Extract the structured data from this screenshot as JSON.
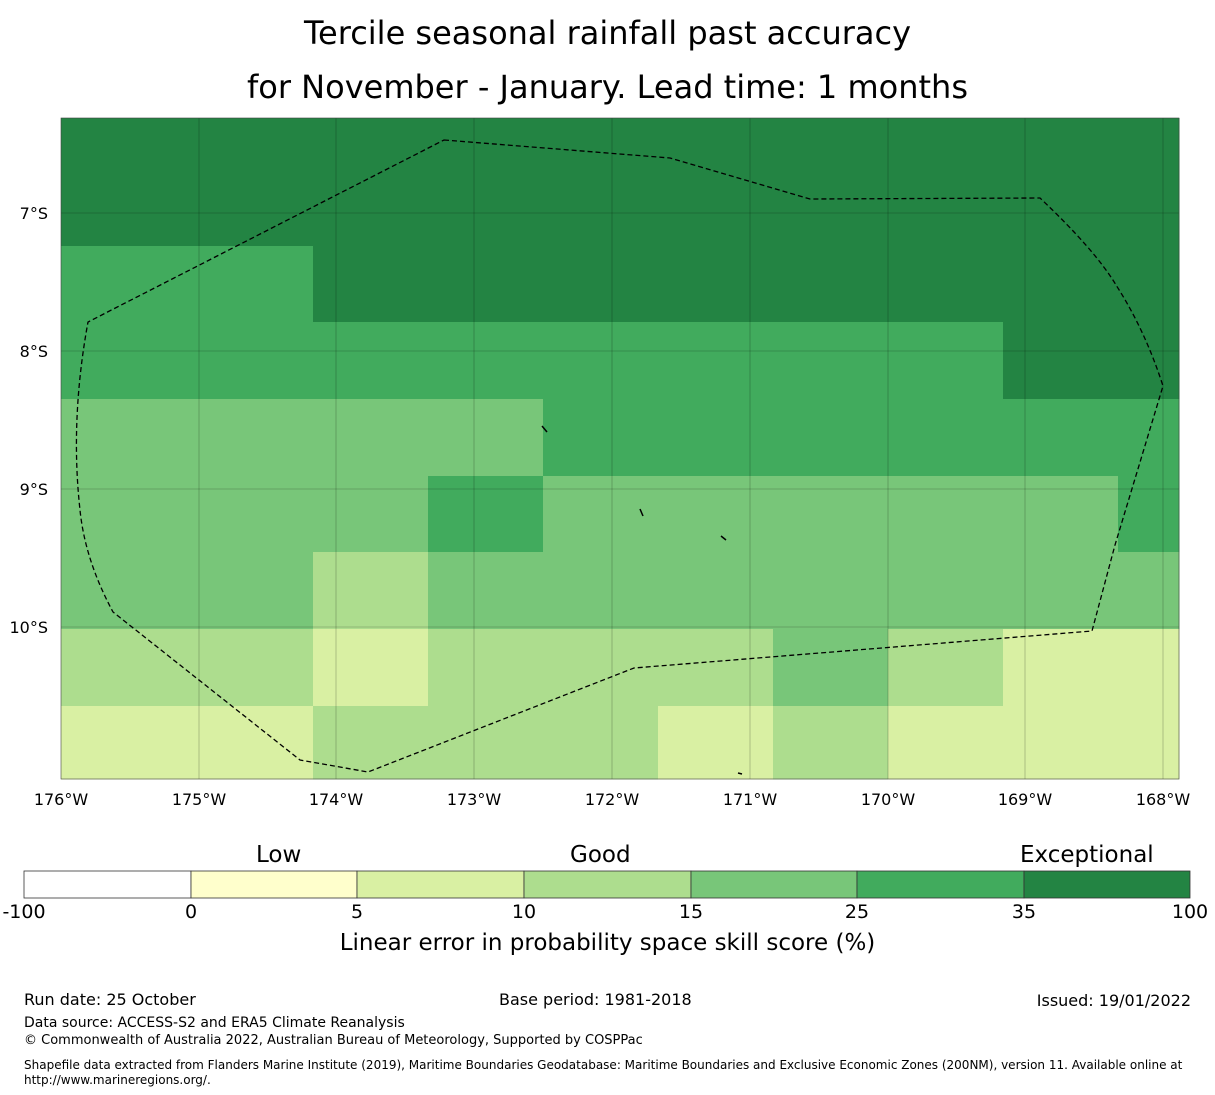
{
  "title": {
    "line1": "Tercile seasonal rainfall past accuracy",
    "line2": "for November - January. Lead time: 1 months"
  },
  "map": {
    "lat_labels": [
      "7°S",
      "8°S",
      "9°S",
      "10°S"
    ],
    "lon_labels": [
      "176°W",
      "175°W",
      "174°W",
      "173°W",
      "172°W",
      "171°W",
      "170°W",
      "169°W",
      "168°W"
    ],
    "grid_rows": [
      [
        "#238443",
        "#238443",
        "#238443",
        "#238443",
        "#238443",
        "#238443",
        "#238443",
        "#238443",
        "#238443",
        "#238443",
        "#238443"
      ],
      [
        "#41ab5d",
        "#41ab5d",
        "#238443",
        "#238443",
        "#238443",
        "#238443",
        "#238443",
        "#238443",
        "#238443",
        "#238443",
        "#238443"
      ],
      [
        "#41ab5d",
        "#41ab5d",
        "#41ab5d",
        "#41ab5d",
        "#41ab5d",
        "#41ab5d",
        "#41ab5d",
        "#41ab5d",
        "#238443",
        "#238443",
        "#41ab5d"
      ],
      [
        "#78c679",
        "#78c679",
        "#78c679",
        "#78c679",
        "#41ab5d",
        "#41ab5d",
        "#41ab5d",
        "#41ab5d",
        "#41ab5d",
        "#41ab5d",
        "#78c679"
      ],
      [
        "#78c679",
        "#78c679",
        "#78c679",
        "#41ab5d",
        "#78c679",
        "#78c679",
        "#78c679",
        "#78c679",
        "#78c679",
        "#41ab5d",
        "#78c679"
      ],
      [
        "#78c679",
        "#78c679",
        "#addd8e",
        "#78c679",
        "#78c679",
        "#78c679",
        "#78c679",
        "#78c679",
        "#78c679",
        "#78c679",
        "#78c679"
      ],
      [
        "#addd8e",
        "#addd8e",
        "#d9f0a3",
        "#addd8e",
        "#addd8e",
        "#addd8e",
        "#78c679",
        "#addd8e",
        "#d9f0a3",
        "#d9f0a3",
        "#addd8e"
      ],
      [
        "#d9f0a3",
        "#d9f0a3",
        "#addd8e",
        "#addd8e",
        "#addd8e",
        "#d9f0a3",
        "#addd8e",
        "#d9f0a3",
        "#d9f0a3",
        "#d9f0a3",
        "#d9f0a3"
      ]
    ]
  },
  "colorbar": {
    "categories": [
      "Low",
      "Good",
      "Exceptional"
    ],
    "colors": [
      "#ffffff",
      "#ffffcc",
      "#d9f0a3",
      "#addd8e",
      "#78c679",
      "#41ab5d",
      "#238443"
    ],
    "ticks": [
      "-100",
      "0",
      "5",
      "10",
      "15",
      "25",
      "35",
      "100"
    ],
    "label": "Linear error in probability space skill score (%)"
  },
  "footer": {
    "run_date": "Run date: 25 October",
    "base_period": "Base period: 1981-2018",
    "issued": "Issued: 19/01/2022",
    "data_source": "Data source: ACCESS-S2 and ERA5 Climate Reanalysis",
    "copyright": "© Commonwealth of Australia 2022, Australian Bureau of Meteorology, Supported by COSPPac",
    "shapefile_line1": "Shapefile data extracted from Flanders Marine Institute (2019), Maritime Boundaries Geodatabase: Maritime Boundaries and Exclusive Economic Zones (200NM), version 11. Available online at",
    "shapefile_line2": "http://www.marineregions.org/."
  }
}
